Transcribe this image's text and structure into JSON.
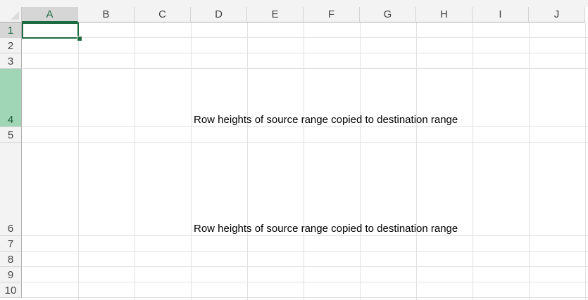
{
  "columns": [
    "A",
    "B",
    "C",
    "D",
    "E",
    "F",
    "G",
    "H",
    "I",
    "J"
  ],
  "rows": [
    "1",
    "2",
    "3",
    "4",
    "5",
    "6",
    "7",
    "8",
    "9",
    "10"
  ],
  "active_cell": "A1",
  "cells": {
    "D4": "Row heights of source range copied to destination range",
    "D6": "Row heights of source range copied to destination range"
  },
  "colors": {
    "accent": "#1e6b41",
    "highlight_row": "#a0d6b6"
  }
}
